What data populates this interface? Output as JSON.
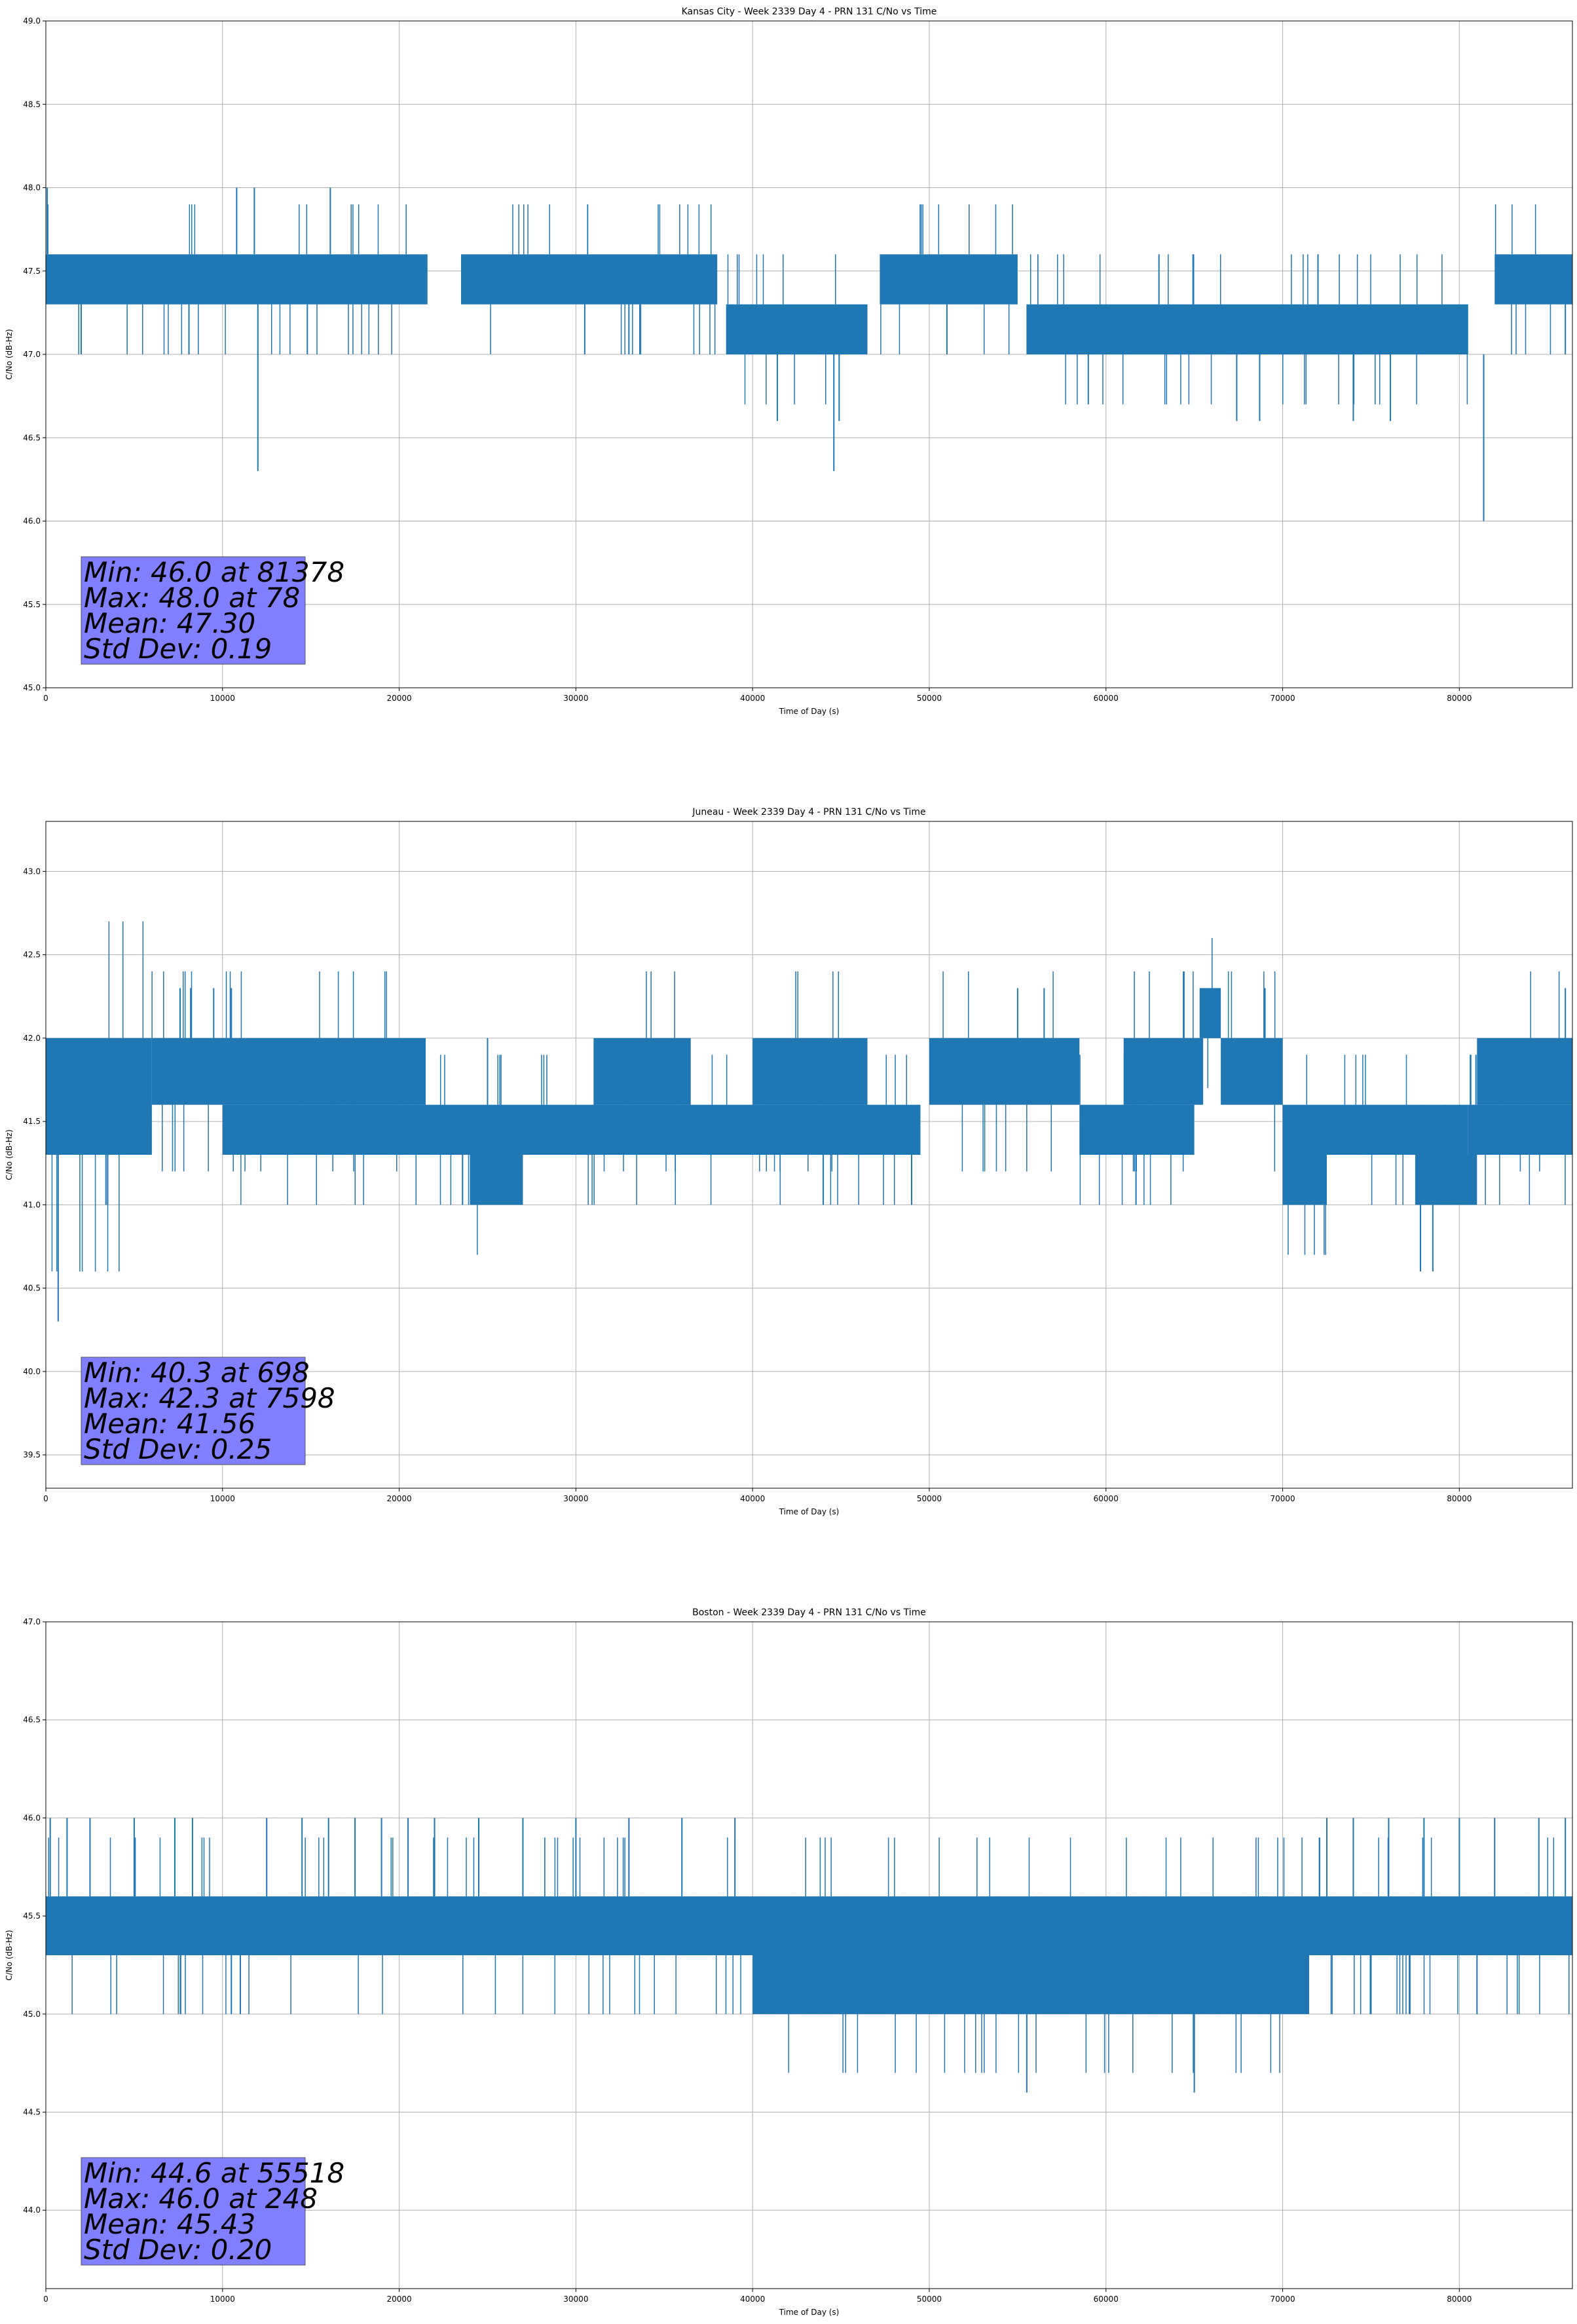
{
  "chart_data": [
    {
      "type": "line",
      "title": "Kansas City - Week 2339 Day 4 - PRN 131 C/No vs Time",
      "xlabel": "Time of Day (s)",
      "ylabel": "C/No (dB-Hz)",
      "xlim": [
        0,
        86400
      ],
      "ylim": [
        45.0,
        49.0
      ],
      "xticks": [
        0,
        10000,
        20000,
        30000,
        40000,
        50000,
        60000,
        70000,
        80000
      ],
      "yticks": [
        45.0,
        45.5,
        46.0,
        46.5,
        47.0,
        47.5,
        48.0,
        48.5,
        49.0
      ],
      "grid": true,
      "line_color": "#1f77b4",
      "stats_box_color": "#8080ff",
      "stats_text": [
        "Min: 46.0 at 81378",
        "Max: 48.0 at 78",
        "Mean: 47.30",
        "Std Dev: 0.19"
      ],
      "series": [
        {
          "segments": [
            {
              "x": [
                0,
                21600
              ],
              "low": 47.3,
              "high": 47.6
            },
            {
              "x": [
                23500,
                38000
              ],
              "low": 47.3,
              "high": 47.6
            },
            {
              "x": [
                38500,
                46500
              ],
              "low": 47.0,
              "high": 47.3
            },
            {
              "x": [
                47200,
                55000
              ],
              "low": 47.3,
              "high": 47.6
            },
            {
              "x": [
                55500,
                80500
              ],
              "low": 47.0,
              "high": 47.3
            },
            {
              "x": [
                82000,
                86400
              ],
              "low": 47.3,
              "high": 47.6
            }
          ],
          "spikes": [
            {
              "x": 78,
              "y": 48.0
            },
            {
              "x": 10800,
              "y": 48.0
            },
            {
              "x": 11800,
              "y": 48.0
            },
            {
              "x": 16100,
              "y": 48.0
            },
            {
              "x": 12000,
              "y": 46.3
            },
            {
              "x": 44600,
              "y": 46.3
            },
            {
              "x": 41400,
              "y": 46.6
            },
            {
              "x": 44900,
              "y": 46.6
            },
            {
              "x": 59000,
              "y": 46.7
            },
            {
              "x": 67400,
              "y": 46.6
            },
            {
              "x": 68700,
              "y": 46.6
            },
            {
              "x": 74000,
              "y": 46.6
            },
            {
              "x": 76100,
              "y": 46.6
            },
            {
              "x": 81378,
              "y": 46.0
            },
            {
              "x": 2000,
              "y": 47.0
            },
            {
              "x": 8100,
              "y": 47.0
            },
            {
              "x": 14800,
              "y": 47.0
            },
            {
              "x": 30500,
              "y": 47.0
            },
            {
              "x": 33000,
              "y": 47.0
            },
            {
              "x": 86000,
              "y": 47.0
            },
            {
              "x": 51000,
              "y": 47.0
            },
            {
              "x": 63000,
              "y": 47.6
            },
            {
              "x": 72000,
              "y": 47.6
            },
            {
              "x": 85200,
              "y": 47.6
            }
          ]
        }
      ]
    },
    {
      "type": "line",
      "title": "Juneau - Week 2339 Day 4 - PRN 131 C/No vs Time",
      "xlabel": "Time of Day (s)",
      "ylabel": "C/No (dB-Hz)",
      "xlim": [
        0,
        86400
      ],
      "ylim": [
        39.3,
        43.3
      ],
      "xticks": [
        0,
        10000,
        20000,
        30000,
        40000,
        50000,
        60000,
        70000,
        80000
      ],
      "yticks": [
        39.5,
        40.0,
        40.5,
        41.0,
        41.5,
        42.0,
        42.5,
        43.0
      ],
      "grid": true,
      "line_color": "#1f77b4",
      "stats_box_color": "#8080ff",
      "stats_text": [
        "Min: 40.3 at 698",
        "Max: 42.3 at 7598",
        "Mean: 41.56",
        "Std Dev: 0.25"
      ],
      "series": [
        {
          "segments": [
            {
              "x": [
                0,
                6000
              ],
              "low": 41.3,
              "high": 42.0
            },
            {
              "x": [
                6000,
                21500
              ],
              "low": 41.6,
              "high": 42.0
            },
            {
              "x": [
                10000,
                23500
              ],
              "low": 41.3,
              "high": 41.6
            },
            {
              "x": [
                23500,
                49500
              ],
              "low": 41.3,
              "high": 41.6
            },
            {
              "x": [
                24000,
                27000
              ],
              "low": 41.0,
              "high": 41.3
            },
            {
              "x": [
                31000,
                36500
              ],
              "low": 41.6,
              "high": 42.0
            },
            {
              "x": [
                40000,
                46500
              ],
              "low": 41.6,
              "high": 42.0
            },
            {
              "x": [
                50000,
                58500
              ],
              "low": 41.6,
              "high": 42.0
            },
            {
              "x": [
                58500,
                65000
              ],
              "low": 41.3,
              "high": 41.6
            },
            {
              "x": [
                61000,
                65500
              ],
              "low": 41.6,
              "high": 42.0
            },
            {
              "x": [
                65300,
                66500
              ],
              "low": 42.0,
              "high": 42.3
            },
            {
              "x": [
                66500,
                70000
              ],
              "low": 41.6,
              "high": 42.0
            },
            {
              "x": [
                70000,
                80500
              ],
              "low": 41.3,
              "high": 41.6
            },
            {
              "x": [
                70000,
                72500
              ],
              "low": 41.0,
              "high": 41.3
            },
            {
              "x": [
                77500,
                81000
              ],
              "low": 41.0,
              "high": 41.3
            },
            {
              "x": [
                80500,
                86400
              ],
              "low": 41.3,
              "high": 41.6
            },
            {
              "x": [
                81000,
                86400
              ],
              "low": 41.6,
              "high": 42.0
            }
          ],
          "spikes": [
            {
              "x": 698,
              "y": 40.3
            },
            {
              "x": 7598,
              "y": 42.3
            },
            {
              "x": 8200,
              "y": 42.3
            },
            {
              "x": 9500,
              "y": 42.3
            },
            {
              "x": 10500,
              "y": 42.3
            },
            {
              "x": 55000,
              "y": 42.3
            },
            {
              "x": 56500,
              "y": 42.3
            },
            {
              "x": 69000,
              "y": 42.3
            },
            {
              "x": 86000,
              "y": 42.3
            },
            {
              "x": 77800,
              "y": 40.6
            },
            {
              "x": 78500,
              "y": 40.6
            },
            {
              "x": 3400,
              "y": 41.0
            },
            {
              "x": 3500,
              "y": 41.0
            },
            {
              "x": 44000,
              "y": 41.0
            },
            {
              "x": 49000,
              "y": 41.0
            },
            {
              "x": 61700,
              "y": 41.0
            },
            {
              "x": 30000,
              "y": 42.0
            },
            {
              "x": 25000,
              "y": 42.0
            }
          ]
        }
      ]
    },
    {
      "type": "line",
      "title": "Boston - Week 2339 Day 4 - PRN 131 C/No vs Time",
      "xlabel": "Time of Day (s)",
      "ylabel": "C/No (dB-Hz)",
      "xlim": [
        0,
        86400
      ],
      "ylim": [
        43.6,
        47.0
      ],
      "xticks": [
        0,
        10000,
        20000,
        30000,
        40000,
        50000,
        60000,
        70000,
        80000
      ],
      "yticks": [
        44.0,
        44.5,
        45.0,
        45.5,
        46.0,
        46.5,
        47.0
      ],
      "grid": true,
      "line_color": "#1f77b4",
      "stats_box_color": "#8080ff",
      "stats_text": [
        "Min: 44.6 at 55518",
        "Max: 46.0 at 248",
        "Mean: 45.43",
        "Std Dev: 0.20"
      ],
      "series": [
        {
          "segments": [
            {
              "x": [
                0,
                86400
              ],
              "low": 45.3,
              "high": 45.6
            },
            {
              "x": [
                40000,
                71500
              ],
              "low": 45.0,
              "high": 45.3
            }
          ],
          "spikes": [
            {
              "x": 248,
              "y": 46.0
            },
            {
              "x": 1200,
              "y": 46.0
            },
            {
              "x": 2500,
              "y": 46.0
            },
            {
              "x": 5000,
              "y": 46.0
            },
            {
              "x": 7300,
              "y": 46.0
            },
            {
              "x": 8300,
              "y": 46.0
            },
            {
              "x": 12500,
              "y": 46.0
            },
            {
              "x": 14500,
              "y": 46.0
            },
            {
              "x": 16000,
              "y": 46.0
            },
            {
              "x": 17500,
              "y": 46.0
            },
            {
              "x": 19000,
              "y": 46.0
            },
            {
              "x": 20500,
              "y": 46.0
            },
            {
              "x": 22000,
              "y": 46.0
            },
            {
              "x": 24500,
              "y": 46.0
            },
            {
              "x": 27000,
              "y": 46.0
            },
            {
              "x": 30000,
              "y": 46.0
            },
            {
              "x": 33000,
              "y": 46.0
            },
            {
              "x": 36000,
              "y": 46.0
            },
            {
              "x": 39000,
              "y": 46.0
            },
            {
              "x": 72500,
              "y": 46.0
            },
            {
              "x": 74000,
              "y": 46.0
            },
            {
              "x": 76000,
              "y": 46.0
            },
            {
              "x": 78000,
              "y": 46.0
            },
            {
              "x": 80000,
              "y": 46.0
            },
            {
              "x": 82000,
              "y": 46.0
            },
            {
              "x": 84500,
              "y": 46.0
            },
            {
              "x": 86000,
              "y": 46.0
            },
            {
              "x": 10500,
              "y": 45.0
            },
            {
              "x": 75000,
              "y": 45.0
            },
            {
              "x": 81000,
              "y": 45.0
            },
            {
              "x": 55518,
              "y": 44.6
            },
            {
              "x": 65000,
              "y": 44.6
            }
          ]
        }
      ]
    }
  ]
}
